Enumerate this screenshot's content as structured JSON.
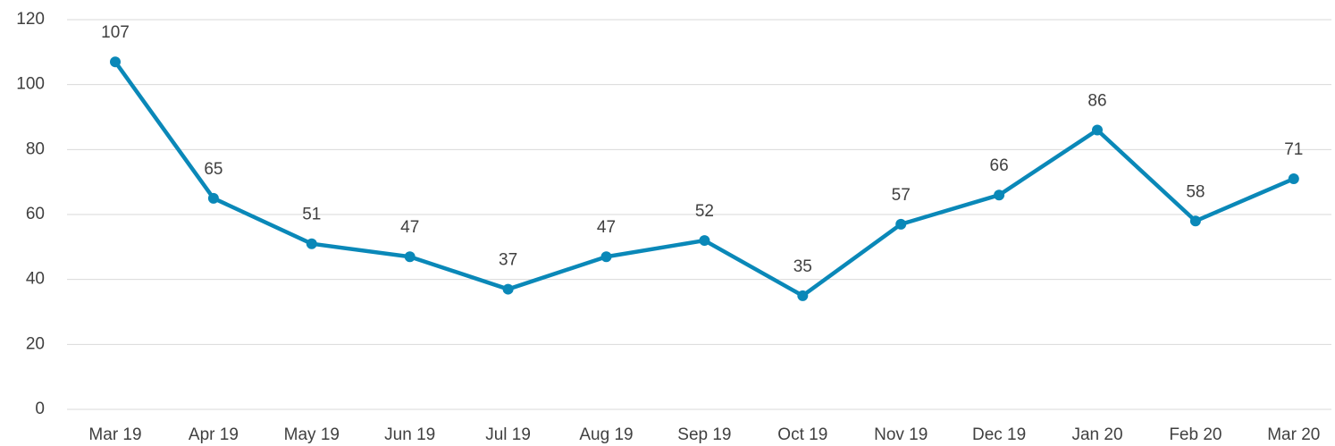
{
  "chart_data": {
    "type": "line",
    "categories": [
      "Mar 19",
      "Apr 19",
      "May 19",
      "Jun 19",
      "Jul 19",
      "Aug 19",
      "Sep 19",
      "Oct 19",
      "Nov 19",
      "Dec 19",
      "Jan 20",
      "Feb 20",
      "Mar 20"
    ],
    "series": [
      {
        "name": null,
        "color": "#0a88b8",
        "values": [
          107,
          65,
          51,
          47,
          37,
          47,
          52,
          35,
          57,
          66,
          86,
          58,
          71
        ]
      }
    ],
    "ylim": [
      0,
      120
    ],
    "yticks": [
      0,
      20,
      40,
      60,
      80,
      100,
      120
    ],
    "grid": true
  }
}
